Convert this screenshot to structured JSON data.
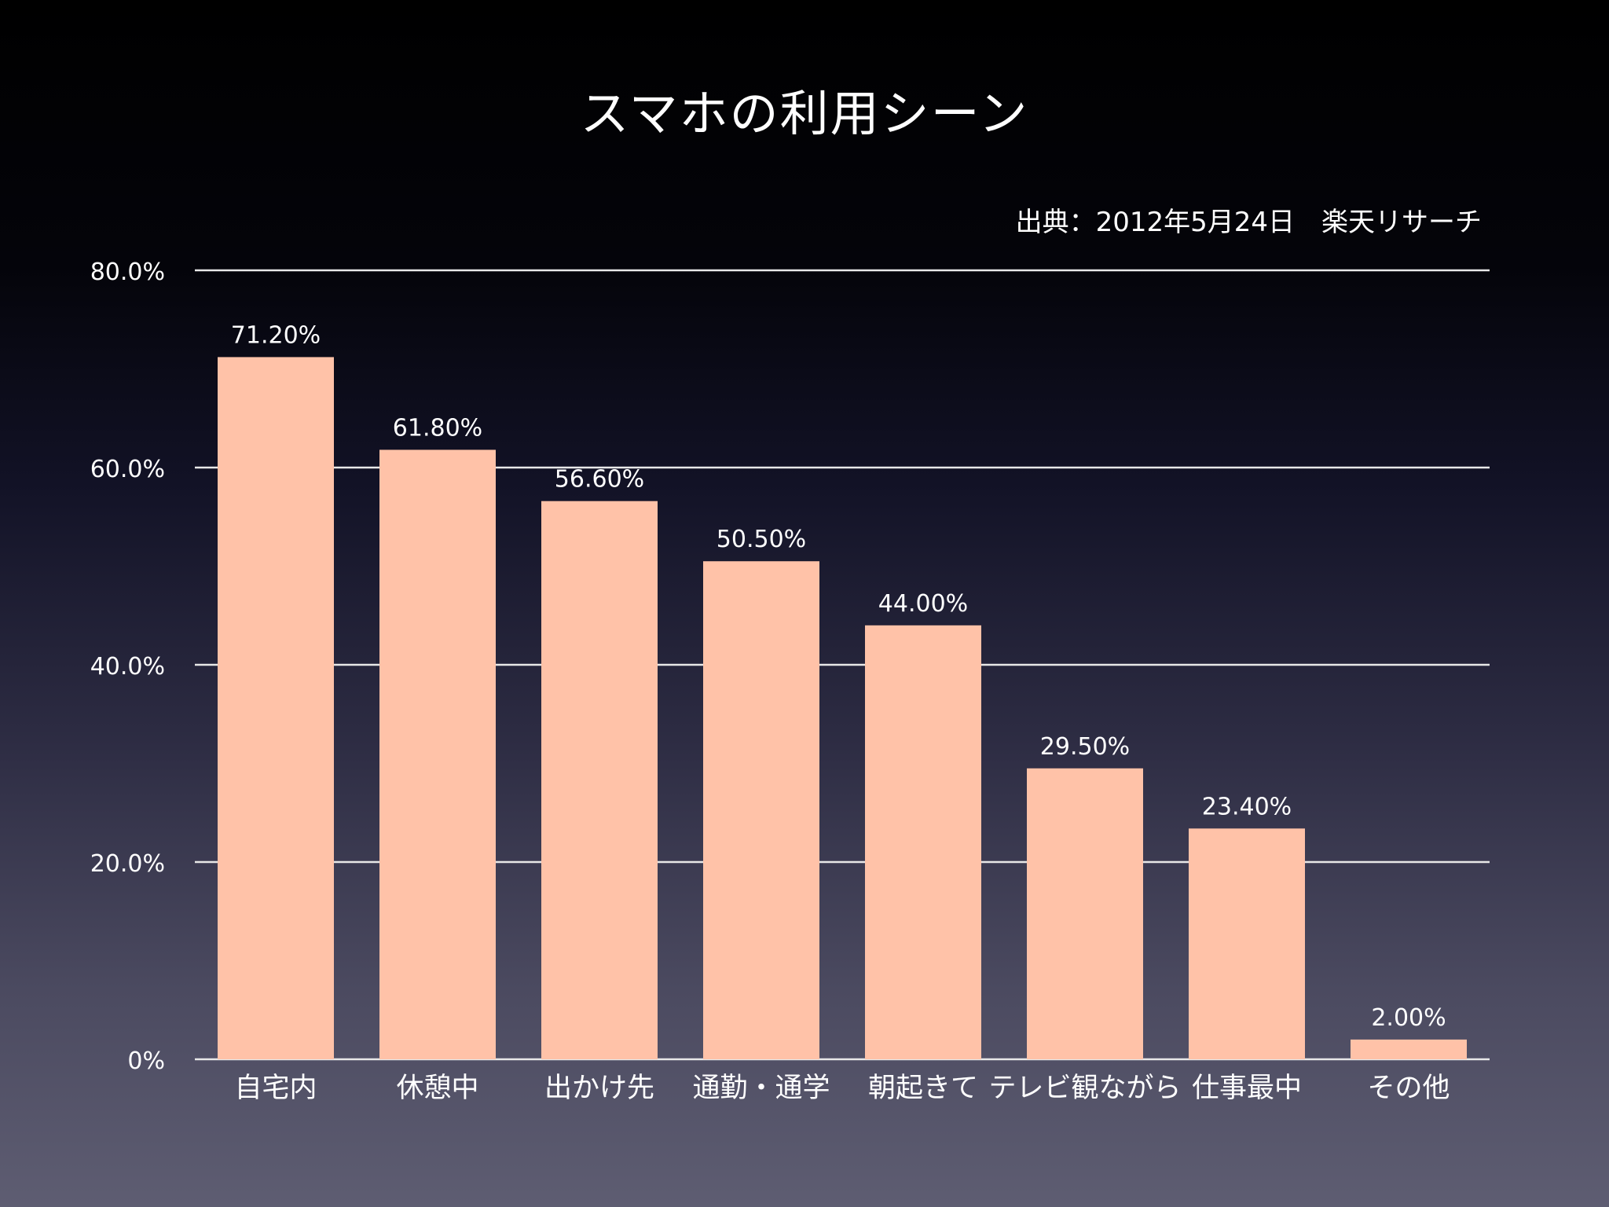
{
  "title": "スマホの利用シーン",
  "source": "出典：2012年5月24日　楽天リサーチ",
  "colors": {
    "bar": "#ffc2a8",
    "gridline": "#e8e8e8",
    "text": "#ffffff"
  },
  "chart_data": {
    "type": "bar",
    "title": "スマホの利用シーン",
    "xlabel": "",
    "ylabel": "",
    "categories": [
      "自宅内",
      "休憩中",
      "出かけ先",
      "通勤・通学",
      "朝起きて",
      "テレビ観ながら",
      "仕事最中",
      "その他"
    ],
    "values": [
      71.2,
      61.8,
      56.6,
      50.5,
      44.0,
      29.5,
      23.4,
      2.0
    ],
    "data_labels": [
      "71.20%",
      "61.80%",
      "56.60%",
      "50.50%",
      "44.00%",
      "29.50%",
      "23.40%",
      "2.00%"
    ],
    "ylim": [
      0,
      80
    ],
    "yticks": [
      0,
      20,
      40,
      60,
      80
    ],
    "ytick_labels": [
      "0%",
      "20.0%",
      "40.0%",
      "60.0%",
      "80.0%"
    ],
    "grid": true,
    "legend": "none"
  }
}
